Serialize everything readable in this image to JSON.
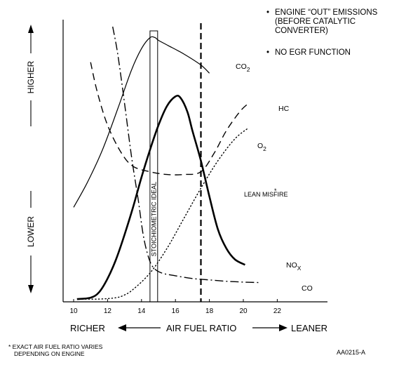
{
  "notes": [
    "ENGINE “OUT” EMISSIONS (BEFORE CATALYTIC CONVERTER)",
    "NO EGR FUNCTION"
  ],
  "footnote_line1": "* EXACT AIR FUEL RATIO VARIES",
  "footnote_line2": "DEPENDING ON ENGINE",
  "figure_id": "AA0215-A",
  "chart_data": {
    "type": "line",
    "xlabel": "AIR FUEL RATIO",
    "x_left_label": "RICHER",
    "x_right_label": "LEANER",
    "y_high_label": "HIGHER",
    "y_low_label": "LOWER",
    "xlim": [
      9.3,
      22.5
    ],
    "ylim": [
      0,
      100
    ],
    "x_ticks": [
      10,
      12,
      14,
      16,
      18,
      20,
      22
    ],
    "stoichiometric_label": "STOICHIOMETRIC IDEAL",
    "stoichiometric_range": [
      14.5,
      14.95
    ],
    "lean_misfire_label": "LEAN MISFIRE",
    "lean_misfire_x": 17.5,
    "series": [
      {
        "name": "CO2",
        "label_main": "CO",
        "label_sub": "2",
        "style": "solid",
        "weight": "thin",
        "x": [
          10,
          10.8,
          11.7,
          12.6,
          13.4,
          14.0,
          14.5,
          14.8,
          15.0,
          15.6,
          16.5,
          17.5,
          18.0
        ],
        "y": [
          34,
          43,
          55,
          70,
          84,
          92,
          96,
          96,
          95,
          93,
          90,
          86,
          83
        ]
      },
      {
        "name": "HC",
        "label_main": "HC",
        "label_sub": "",
        "style": "dashed",
        "weight": "normal",
        "x": [
          11.0,
          11.4,
          12.0,
          12.8,
          13.5,
          14.5,
          15.5,
          16.5,
          17.5,
          18.3,
          19.0,
          19.8,
          20.3
        ],
        "y": [
          87,
          76,
          64,
          54,
          49,
          47,
          46,
          46,
          47,
          54,
          62,
          69,
          72
        ]
      },
      {
        "name": "O2",
        "label_main": "O",
        "label_sub": "2",
        "style": "dotted",
        "weight": "normal",
        "x": [
          10.3,
          11.5,
          12.5,
          13.0,
          13.5,
          14.5,
          15.5,
          16.5,
          17.5,
          18.5,
          19.5,
          20.3
        ],
        "y": [
          0.5,
          0.5,
          1,
          2,
          4,
          10,
          19,
          30,
          41,
          51,
          59,
          63
        ]
      },
      {
        "name": "CO",
        "label_main": "CO",
        "label_sub": "",
        "style": "dashdot",
        "weight": "normal",
        "x": [
          12.3,
          12.6,
          13.0,
          13.4,
          13.8,
          14.1,
          14.4,
          14.7,
          15.2,
          16.0,
          17.0,
          18.0,
          19.0,
          20.0,
          21.0
        ],
        "y": [
          100,
          90,
          72,
          53,
          37,
          24,
          16,
          12,
          10,
          9,
          8,
          7.5,
          7,
          6.7,
          6.5
        ]
      },
      {
        "name": "NOX",
        "label_main": "NO",
        "label_sub": "X",
        "style": "solid",
        "weight": "bold",
        "x": [
          10.2,
          11.0,
          11.5,
          12.0,
          12.5,
          13.0,
          13.5,
          14.0,
          14.5,
          15.0,
          15.5,
          16.0,
          16.3,
          16.7,
          17.0,
          17.5,
          18.0,
          18.5,
          19.0,
          19.5,
          20.1
        ],
        "y": [
          0.5,
          1,
          3,
          8,
          15,
          24,
          34,
          45,
          55,
          64,
          71,
          74.5,
          74,
          69,
          62,
          51,
          38,
          26,
          19,
          15,
          13
        ]
      }
    ]
  }
}
